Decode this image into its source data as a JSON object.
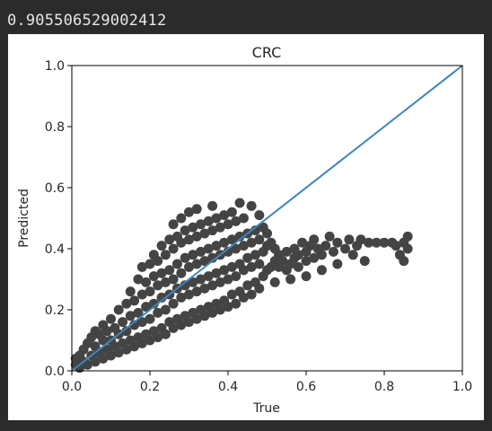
{
  "cell_output": {
    "text": "0.905506529002412"
  },
  "chart_data": {
    "type": "scatter",
    "title": "CRC",
    "xlabel": "True",
    "ylabel": "Predicted",
    "xlim": [
      0.0,
      1.0
    ],
    "ylim": [
      0.0,
      1.0
    ],
    "xticks": [
      "0.0",
      "0.2",
      "0.4",
      "0.6",
      "0.8",
      "1.0"
    ],
    "yticks": [
      "0.0",
      "0.2",
      "0.4",
      "0.6",
      "0.8",
      "1.0"
    ],
    "grid": false,
    "marker_color": "#444444",
    "line_color": "#3d86c0",
    "reference_line": {
      "x": [
        0.0,
        1.0
      ],
      "y": [
        0.0,
        1.0
      ]
    },
    "points": [
      [
        0.01,
        0.02
      ],
      [
        0.01,
        0.04
      ],
      [
        0.02,
        0.01
      ],
      [
        0.02,
        0.05
      ],
      [
        0.03,
        0.03
      ],
      [
        0.03,
        0.07
      ],
      [
        0.04,
        0.02
      ],
      [
        0.04,
        0.09
      ],
      [
        0.05,
        0.05
      ],
      [
        0.05,
        0.11
      ],
      [
        0.06,
        0.03
      ],
      [
        0.06,
        0.08
      ],
      [
        0.06,
        0.13
      ],
      [
        0.07,
        0.06
      ],
      [
        0.07,
        0.12
      ],
      [
        0.08,
        0.04
      ],
      [
        0.08,
        0.1
      ],
      [
        0.08,
        0.15
      ],
      [
        0.09,
        0.07
      ],
      [
        0.09,
        0.13
      ],
      [
        0.1,
        0.05
      ],
      [
        0.1,
        0.1
      ],
      [
        0.1,
        0.17
      ],
      [
        0.11,
        0.08
      ],
      [
        0.11,
        0.14
      ],
      [
        0.12,
        0.06
      ],
      [
        0.12,
        0.12
      ],
      [
        0.12,
        0.2
      ],
      [
        0.13,
        0.09
      ],
      [
        0.13,
        0.16
      ],
      [
        0.14,
        0.07
      ],
      [
        0.14,
        0.13
      ],
      [
        0.14,
        0.22
      ],
      [
        0.15,
        0.1
      ],
      [
        0.15,
        0.18
      ],
      [
        0.15,
        0.26
      ],
      [
        0.16,
        0.08
      ],
      [
        0.16,
        0.15
      ],
      [
        0.16,
        0.23
      ],
      [
        0.17,
        0.11
      ],
      [
        0.17,
        0.19
      ],
      [
        0.17,
        0.3
      ],
      [
        0.18,
        0.09
      ],
      [
        0.18,
        0.16
      ],
      [
        0.18,
        0.25
      ],
      [
        0.18,
        0.34
      ],
      [
        0.19,
        0.12
      ],
      [
        0.19,
        0.21
      ],
      [
        0.19,
        0.29
      ],
      [
        0.2,
        0.1
      ],
      [
        0.2,
        0.17
      ],
      [
        0.2,
        0.26
      ],
      [
        0.2,
        0.35
      ],
      [
        0.21,
        0.13
      ],
      [
        0.21,
        0.22
      ],
      [
        0.21,
        0.31
      ],
      [
        0.21,
        0.38
      ],
      [
        0.22,
        0.11
      ],
      [
        0.22,
        0.19
      ],
      [
        0.22,
        0.28
      ],
      [
        0.22,
        0.36
      ],
      [
        0.23,
        0.14
      ],
      [
        0.23,
        0.24
      ],
      [
        0.23,
        0.32
      ],
      [
        0.23,
        0.41
      ],
      [
        0.24,
        0.12
      ],
      [
        0.24,
        0.2
      ],
      [
        0.24,
        0.29
      ],
      [
        0.24,
        0.38
      ],
      [
        0.25,
        0.16
      ],
      [
        0.25,
        0.25
      ],
      [
        0.25,
        0.33
      ],
      [
        0.25,
        0.43
      ],
      [
        0.26,
        0.14
      ],
      [
        0.26,
        0.22
      ],
      [
        0.26,
        0.3
      ],
      [
        0.26,
        0.4
      ],
      [
        0.26,
        0.48
      ],
      [
        0.27,
        0.17
      ],
      [
        0.27,
        0.27
      ],
      [
        0.27,
        0.35
      ],
      [
        0.27,
        0.44
      ],
      [
        0.28,
        0.15
      ],
      [
        0.28,
        0.24
      ],
      [
        0.28,
        0.32
      ],
      [
        0.28,
        0.42
      ],
      [
        0.28,
        0.5
      ],
      [
        0.29,
        0.18
      ],
      [
        0.29,
        0.28
      ],
      [
        0.29,
        0.37
      ],
      [
        0.29,
        0.46
      ],
      [
        0.3,
        0.16
      ],
      [
        0.3,
        0.25
      ],
      [
        0.3,
        0.34
      ],
      [
        0.3,
        0.43
      ],
      [
        0.3,
        0.52
      ],
      [
        0.31,
        0.19
      ],
      [
        0.31,
        0.29
      ],
      [
        0.31,
        0.38
      ],
      [
        0.31,
        0.47
      ],
      [
        0.32,
        0.17
      ],
      [
        0.32,
        0.26
      ],
      [
        0.32,
        0.35
      ],
      [
        0.32,
        0.44
      ],
      [
        0.32,
        0.53
      ],
      [
        0.33,
        0.2
      ],
      [
        0.33,
        0.3
      ],
      [
        0.33,
        0.39
      ],
      [
        0.33,
        0.48
      ],
      [
        0.34,
        0.18
      ],
      [
        0.34,
        0.27
      ],
      [
        0.34,
        0.36
      ],
      [
        0.34,
        0.45
      ],
      [
        0.35,
        0.21
      ],
      [
        0.35,
        0.31
      ],
      [
        0.35,
        0.4
      ],
      [
        0.35,
        0.49
      ],
      [
        0.36,
        0.19
      ],
      [
        0.36,
        0.28
      ],
      [
        0.36,
        0.37
      ],
      [
        0.36,
        0.46
      ],
      [
        0.36,
        0.54
      ],
      [
        0.37,
        0.22
      ],
      [
        0.37,
        0.32
      ],
      [
        0.37,
        0.41
      ],
      [
        0.37,
        0.5
      ],
      [
        0.38,
        0.2
      ],
      [
        0.38,
        0.29
      ],
      [
        0.38,
        0.38
      ],
      [
        0.38,
        0.47
      ],
      [
        0.39,
        0.23
      ],
      [
        0.39,
        0.33
      ],
      [
        0.39,
        0.42
      ],
      [
        0.39,
        0.51
      ],
      [
        0.4,
        0.21
      ],
      [
        0.4,
        0.3
      ],
      [
        0.4,
        0.39
      ],
      [
        0.4,
        0.48
      ],
      [
        0.41,
        0.25
      ],
      [
        0.41,
        0.34
      ],
      [
        0.41,
        0.43
      ],
      [
        0.41,
        0.52
      ],
      [
        0.42,
        0.22
      ],
      [
        0.42,
        0.31
      ],
      [
        0.42,
        0.4
      ],
      [
        0.42,
        0.49
      ],
      [
        0.43,
        0.26
      ],
      [
        0.43,
        0.35
      ],
      [
        0.43,
        0.44
      ],
      [
        0.43,
        0.55
      ],
      [
        0.44,
        0.24
      ],
      [
        0.44,
        0.33
      ],
      [
        0.44,
        0.41
      ],
      [
        0.44,
        0.5
      ],
      [
        0.45,
        0.28
      ],
      [
        0.45,
        0.37
      ],
      [
        0.45,
        0.45
      ],
      [
        0.46,
        0.25
      ],
      [
        0.46,
        0.34
      ],
      [
        0.46,
        0.42
      ],
      [
        0.46,
        0.54
      ],
      [
        0.47,
        0.29
      ],
      [
        0.47,
        0.38
      ],
      [
        0.47,
        0.46
      ],
      [
        0.48,
        0.27
      ],
      [
        0.48,
        0.35
      ],
      [
        0.48,
        0.43
      ],
      [
        0.48,
        0.51
      ],
      [
        0.49,
        0.31
      ],
      [
        0.49,
        0.39
      ],
      [
        0.49,
        0.47
      ],
      [
        0.5,
        0.33
      ],
      [
        0.5,
        0.41
      ],
      [
        0.5,
        0.45
      ],
      [
        0.51,
        0.34
      ],
      [
        0.51,
        0.42
      ],
      [
        0.52,
        0.36
      ],
      [
        0.52,
        0.4
      ],
      [
        0.53,
        0.34
      ],
      [
        0.53,
        0.38
      ],
      [
        0.54,
        0.36
      ],
      [
        0.55,
        0.39
      ],
      [
        0.55,
        0.33
      ],
      [
        0.56,
        0.35
      ],
      [
        0.57,
        0.37
      ],
      [
        0.57,
        0.4
      ],
      [
        0.58,
        0.34
      ],
      [
        0.58,
        0.38
      ],
      [
        0.59,
        0.42
      ],
      [
        0.6,
        0.36
      ],
      [
        0.6,
        0.39
      ],
      [
        0.61,
        0.41
      ],
      [
        0.62,
        0.37
      ],
      [
        0.62,
        0.43
      ],
      [
        0.63,
        0.4
      ],
      [
        0.64,
        0.38
      ],
      [
        0.65,
        0.41
      ],
      [
        0.66,
        0.44
      ],
      [
        0.67,
        0.39
      ],
      [
        0.68,
        0.42
      ],
      [
        0.7,
        0.4
      ],
      [
        0.71,
        0.43
      ],
      [
        0.72,
        0.38
      ],
      [
        0.73,
        0.41
      ],
      [
        0.74,
        0.43
      ],
      [
        0.76,
        0.42
      ],
      [
        0.78,
        0.42
      ],
      [
        0.8,
        0.42
      ],
      [
        0.82,
        0.42
      ],
      [
        0.83,
        0.41
      ],
      [
        0.84,
        0.38
      ],
      [
        0.85,
        0.36
      ],
      [
        0.85,
        0.42
      ],
      [
        0.86,
        0.4
      ],
      [
        0.86,
        0.44
      ],
      [
        0.75,
        0.36
      ],
      [
        0.68,
        0.35
      ],
      [
        0.64,
        0.33
      ],
      [
        0.6,
        0.31
      ],
      [
        0.56,
        0.3
      ],
      [
        0.52,
        0.29
      ]
    ]
  }
}
